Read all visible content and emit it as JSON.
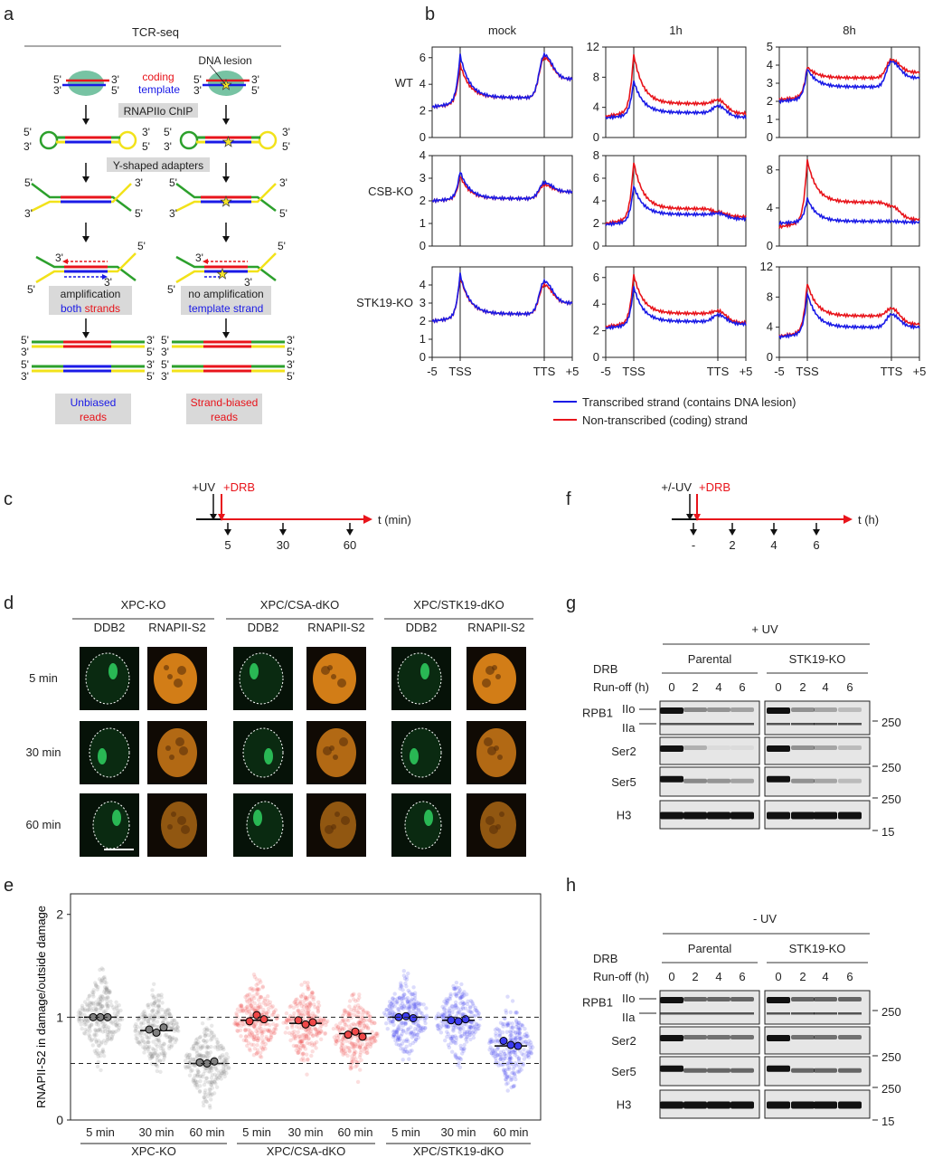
{
  "panel_labels": {
    "a": "a",
    "b": "b",
    "c": "c",
    "d": "d",
    "e": "e",
    "f": "f",
    "g": "g",
    "h": "h"
  },
  "panel_a": {
    "title": "TCR-seq",
    "dna_lesion": "DNA lesion",
    "coding": "coding",
    "template": "template",
    "step1": "RNAPIIo ChIP",
    "step2": "Y-shaped adapters",
    "left_amp_1": "amplification",
    "left_amp_2a": "both",
    "left_amp_2b": "strands",
    "right_amp_1": "no amplification",
    "right_amp_2": "template strand",
    "left_result_1": "Unbiased",
    "left_result_2": "reads",
    "right_result_1": "Strand-biased",
    "right_result_2": "reads",
    "end5": "5'",
    "end3": "3'",
    "colors": {
      "coding": "#e8141b",
      "template": "#1a1ae6",
      "adapter_green": "#2ca02c",
      "adapter_yellow": "#f2e21a",
      "polymerase": "#5fb893",
      "box": "#d9d9d9"
    }
  },
  "panel_b": {
    "col_titles": [
      "mock",
      "1h",
      "8h"
    ],
    "row_titles": [
      "WT",
      "CSB-KO",
      "STK19-KO"
    ],
    "x_ticks": [
      "-5",
      "TSS",
      "TTS",
      "+5"
    ],
    "legend": [
      {
        "label": "Transcribed strand (contains DNA lesion)",
        "color": "#1a1ae6"
      },
      {
        "label": "Non-transcribed (coding) strand",
        "color": "#e8141b"
      }
    ]
  },
  "chart_data": [
    {
      "type": "line",
      "description_points": [
        "-5",
        "TSS",
        "TTS",
        "+5"
      ],
      "panels": [
        {
          "row": "WT",
          "col": "mock",
          "ylim": [
            0,
            6.8
          ],
          "yticks": [
            0,
            2,
            4,
            6
          ],
          "transcribed": {
            "start": 2.3,
            "tss": 6.2,
            "body": 3.0,
            "tts": 6.2,
            "end": 4.4
          },
          "non_transcribed": {
            "start": 2.3,
            "tss": 5.5,
            "body": 3.0,
            "tts": 6.0,
            "end": 4.4
          }
        },
        {
          "row": "WT",
          "col": "1h",
          "ylim": [
            0,
            12
          ],
          "yticks": [
            0,
            4,
            8,
            12
          ],
          "transcribed": {
            "start": 2.6,
            "tss": 7.5,
            "body": 3.3,
            "tts": 4.2,
            "end": 2.7
          },
          "non_transcribed": {
            "start": 2.8,
            "tss": 11,
            "body": 4.5,
            "tts": 5.0,
            "end": 3.2
          }
        },
        {
          "row": "WT",
          "col": "8h",
          "ylim": [
            0,
            5
          ],
          "yticks": [
            0,
            1,
            2,
            3,
            4,
            5
          ],
          "transcribed": {
            "start": 2.0,
            "tss": 3.8,
            "body": 2.8,
            "tts": 4.2,
            "end": 3.3
          },
          "non_transcribed": {
            "start": 2.1,
            "tss": 3.9,
            "body": 3.3,
            "tts": 4.3,
            "end": 3.6
          }
        },
        {
          "row": "CSB-KO",
          "col": "mock",
          "ylim": [
            0,
            4
          ],
          "yticks": [
            0,
            1,
            2,
            3,
            4
          ],
          "transcribed": {
            "start": 2.0,
            "tss": 3.3,
            "body": 2.1,
            "tts": 2.8,
            "end": 2.4
          },
          "non_transcribed": {
            "start": 2.0,
            "tss": 3.1,
            "body": 2.1,
            "tts": 2.7,
            "end": 2.4
          }
        },
        {
          "row": "CSB-KO",
          "col": "1h",
          "ylim": [
            0,
            8
          ],
          "yticks": [
            0,
            2,
            4,
            6,
            8
          ],
          "transcribed": {
            "start": 1.9,
            "tss": 5.3,
            "body": 2.8,
            "tts": 2.9,
            "end": 2.4
          },
          "non_transcribed": {
            "start": 2.0,
            "tss": 7.4,
            "body": 3.3,
            "tts": 3.0,
            "end": 2.6
          }
        },
        {
          "row": "CSB-KO",
          "col": "8h",
          "ylim": [
            0,
            9.5
          ],
          "yticks": [
            0,
            4,
            8
          ],
          "transcribed": {
            "start": 2.4,
            "tss": 5.0,
            "body": 2.6,
            "tts": 2.6,
            "end": 2.5
          },
          "non_transcribed": {
            "start": 2.0,
            "tss": 9.0,
            "body": 4.6,
            "tts": 4.2,
            "end": 2.8
          }
        },
        {
          "row": "STK19-KO",
          "col": "mock",
          "ylim": [
            0,
            5
          ],
          "yticks": [
            0,
            1,
            2,
            3,
            4
          ],
          "transcribed": {
            "start": 2.0,
            "tss": 4.6,
            "body": 2.4,
            "tts": 4.2,
            "end": 3.0
          },
          "non_transcribed": {
            "start": 2.0,
            "tss": 4.5,
            "body": 2.4,
            "tts": 4.0,
            "end": 3.0
          }
        },
        {
          "row": "STK19-KO",
          "col": "1h",
          "ylim": [
            0,
            6.8
          ],
          "yticks": [
            0,
            2,
            4,
            6
          ],
          "transcribed": {
            "start": 2.2,
            "tss": 5.3,
            "body": 2.7,
            "tts": 3.2,
            "end": 2.5
          },
          "non_transcribed": {
            "start": 2.3,
            "tss": 6.2,
            "body": 3.3,
            "tts": 3.5,
            "end": 2.6
          }
        },
        {
          "row": "STK19-KO",
          "col": "8h",
          "ylim": [
            0,
            12
          ],
          "yticks": [
            0,
            4,
            8,
            12
          ],
          "transcribed": {
            "start": 2.7,
            "tss": 8.5,
            "body": 4.0,
            "tts": 5.7,
            "end": 4.0
          },
          "non_transcribed": {
            "start": 2.8,
            "tss": 9.8,
            "body": 5.5,
            "tts": 6.5,
            "end": 4.4
          }
        }
      ]
    },
    {
      "type": "scatter",
      "ylabel": "RNAPII-S2 in damage/outside damage",
      "ylim": [
        0,
        2.2
      ],
      "yticks": [
        0,
        1,
        2
      ],
      "reference_lines": [
        1.0,
        0.55
      ],
      "categories": [
        "5 min",
        "30 min",
        "60 min",
        "5 min",
        "30 min",
        "60 min",
        "5 min",
        "30 min",
        "60 min"
      ],
      "groups": [
        {
          "name": "XPC-KO",
          "color": "#808080",
          "medians": [
            1.0,
            0.87,
            0.55
          ],
          "replicates": [
            [
              1.0,
              1.0,
              1.0
            ],
            [
              0.88,
              0.85,
              0.9
            ],
            [
              0.56,
              0.55,
              0.57
            ]
          ]
        },
        {
          "name": "XPC/CSA-dKO",
          "color": "#f04848",
          "medians": [
            0.97,
            0.94,
            0.84
          ],
          "replicates": [
            [
              0.96,
              1.02,
              0.98
            ],
            [
              0.97,
              0.93,
              0.95
            ],
            [
              0.83,
              0.86,
              0.81
            ]
          ]
        },
        {
          "name": "XPC/STK19-dKO",
          "color": "#3c3cf0",
          "medians": [
            1.0,
            0.97,
            0.72
          ],
          "replicates": [
            [
              1.0,
              1.01,
              0.99
            ],
            [
              0.97,
              0.96,
              0.98
            ],
            [
              0.77,
              0.73,
              0.72
            ]
          ]
        }
      ]
    }
  ],
  "panel_c": {
    "uv": "+UV",
    "drb": "+DRB",
    "axis": "t (min)",
    "ticks": [
      "5",
      "30",
      "60"
    ]
  },
  "panel_f": {
    "uv": "+/-UV",
    "drb": "+DRB",
    "axis": "t (h)",
    "ticks": [
      "-",
      "2",
      "4",
      "6"
    ]
  },
  "panel_d": {
    "groups": [
      "XPC-KO",
      "XPC/CSA-dKO",
      "XPC/STK19-dKO"
    ],
    "channels": [
      "DDB2",
      "RNAPII-S2"
    ],
    "rows": [
      "5 min",
      "30 min",
      "60 min"
    ],
    "colors": {
      "ddb2": "#2fd060",
      "rnapii": "#e88a1a"
    }
  },
  "blots": [
    {
      "condition": "+ UV",
      "treatment_1": "DRB",
      "treatment_2": "Run-off (h)",
      "lines": [
        "Parental",
        "STK19-KO"
      ],
      "lanes": [
        "0",
        "2",
        "4",
        "6",
        "0",
        "2",
        "4",
        "6"
      ],
      "rows": [
        "RPB1",
        "Ser2",
        "Ser5",
        "H3"
      ],
      "forms": [
        "IIo",
        "IIa"
      ],
      "markers": [
        "250",
        "250",
        "250",
        "15"
      ]
    },
    {
      "condition": "- UV",
      "treatment_1": "DRB",
      "treatment_2": "Run-off (h)",
      "lines": [
        "Parental",
        "STK19-KO"
      ],
      "lanes": [
        "0",
        "2",
        "4",
        "6",
        "0",
        "2",
        "4",
        "6"
      ],
      "rows": [
        "RPB1",
        "Ser2",
        "Ser5",
        "H3"
      ],
      "forms": [
        "IIo",
        "IIa"
      ],
      "markers": [
        "250",
        "250",
        "250",
        "15"
      ]
    }
  ]
}
